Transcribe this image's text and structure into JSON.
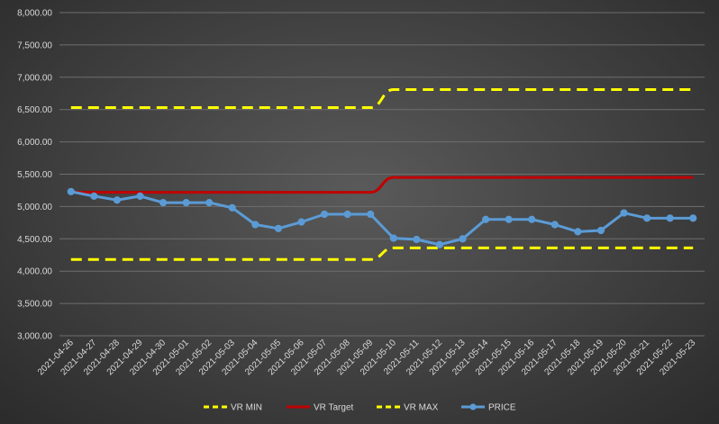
{
  "chart_data": {
    "type": "line",
    "title": "",
    "xlabel": "",
    "ylabel": "",
    "ylim": [
      3000,
      8000
    ],
    "ytick_step": 500,
    "y_tick_labels": [
      "3,000.00",
      "3,500.00",
      "4,000.00",
      "4,500.00",
      "5,000.00",
      "5,500.00",
      "6,000.00",
      "6,500.00",
      "7,000.00",
      "7,500.00",
      "8,000.00"
    ],
    "grid": "horizontal",
    "legend_position": "bottom",
    "categories": [
      "2021-04-26",
      "2021-04-27",
      "2021-04-28",
      "2021-04-29",
      "2021-04-30",
      "2021-05-01",
      "2021-05-02",
      "2021-05-03",
      "2021-05-04",
      "2021-05-05",
      "2021-05-06",
      "2021-05-07",
      "2021-05-08",
      "2021-05-09",
      "2021-05-10",
      "2021-05-11",
      "2021-05-12",
      "2021-05-13",
      "2021-05-14",
      "2021-05-15",
      "2021-05-16",
      "2021-05-17",
      "2021-05-18",
      "2021-05-19",
      "2021-05-20",
      "2021-05-21",
      "2021-05-22",
      "2021-05-23"
    ],
    "series": [
      {
        "name": "VR MIN",
        "color": "#ffff00",
        "style": "dashed",
        "marker": false,
        "values": [
          4180,
          4180,
          4180,
          4180,
          4180,
          4180,
          4180,
          4180,
          4180,
          4180,
          4180,
          4180,
          4180,
          4180,
          4360,
          4360,
          4360,
          4360,
          4360,
          4360,
          4360,
          4360,
          4360,
          4360,
          4360,
          4360,
          4360,
          4360
        ]
      },
      {
        "name": "VR Target",
        "color": "#c00000",
        "style": "solid",
        "marker": false,
        "values": [
          5220,
          5220,
          5220,
          5220,
          5220,
          5220,
          5220,
          5220,
          5220,
          5220,
          5220,
          5220,
          5220,
          5220,
          5450,
          5450,
          5450,
          5450,
          5450,
          5450,
          5450,
          5450,
          5450,
          5450,
          5450,
          5450,
          5450,
          5450
        ]
      },
      {
        "name": "VR MAX",
        "color": "#ffff00",
        "style": "dashed",
        "marker": false,
        "values": [
          6530,
          6530,
          6530,
          6530,
          6530,
          6530,
          6530,
          6530,
          6530,
          6530,
          6530,
          6530,
          6530,
          6530,
          6810,
          6810,
          6810,
          6810,
          6810,
          6810,
          6810,
          6810,
          6810,
          6810,
          6810,
          6810,
          6810,
          6810
        ]
      },
      {
        "name": "PRICE",
        "color": "#5b9bd5",
        "style": "solid",
        "marker": true,
        "values": [
          5230,
          5160,
          5100,
          5160,
          5060,
          5060,
          5060,
          4980,
          4720,
          4660,
          4760,
          4880,
          4880,
          4880,
          4510,
          4490,
          4410,
          4500,
          4800,
          4800,
          4800,
          4720,
          4610,
          4630,
          4900,
          4820,
          4820,
          4820
        ]
      }
    ]
  }
}
